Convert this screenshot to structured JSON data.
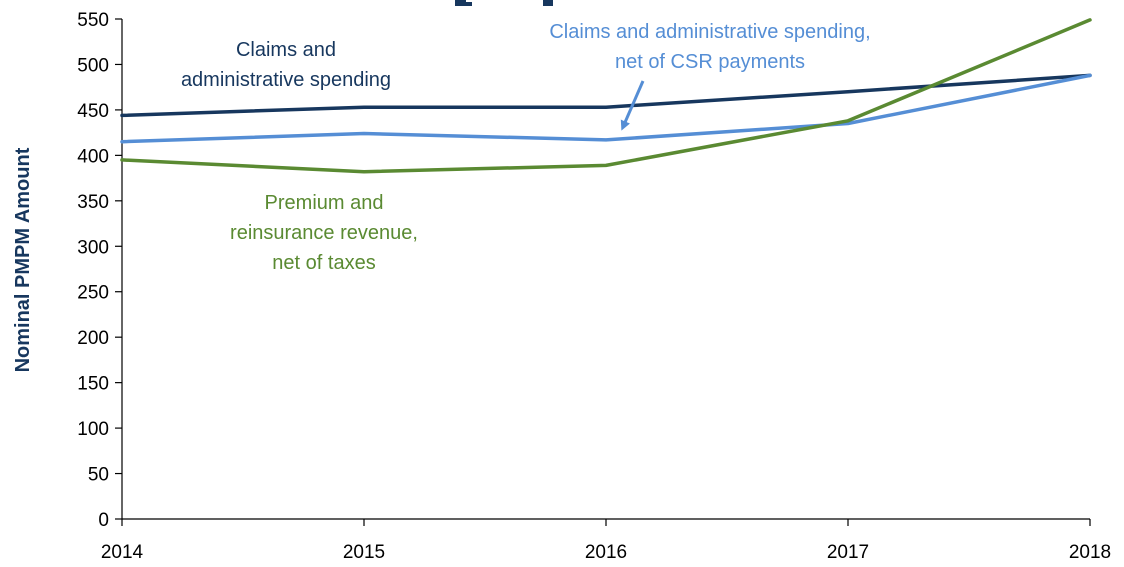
{
  "chart_data": {
    "type": "line",
    "title": "",
    "xlabel": "",
    "ylabel": "Nominal PMPM Amount",
    "ylim": [
      0,
      550
    ],
    "yticks": [
      0,
      50,
      100,
      150,
      200,
      250,
      300,
      350,
      400,
      450,
      500,
      550
    ],
    "x": [
      "2014",
      "2015",
      "2016",
      "2017",
      "2018"
    ],
    "grid": false,
    "series": [
      {
        "key": "claims_admin",
        "color": "#17375e",
        "values": [
          444,
          453,
          453,
          470,
          488
        ],
        "label_lines": [
          "Claims and",
          "administrative spending"
        ]
      },
      {
        "key": "claims_admin_net_csr",
        "color": "#558ed5",
        "values": [
          415,
          424,
          417,
          435,
          488
        ],
        "label_lines": [
          "Claims and administrative spending,",
          "net of CSR payments"
        ]
      },
      {
        "key": "premium_reinsurance",
        "color": "#5a8a32",
        "values": [
          395,
          382,
          389,
          438,
          549
        ],
        "label_lines": [
          "Premium and",
          "reinsurance revenue,",
          "net of taxes"
        ]
      }
    ]
  }
}
